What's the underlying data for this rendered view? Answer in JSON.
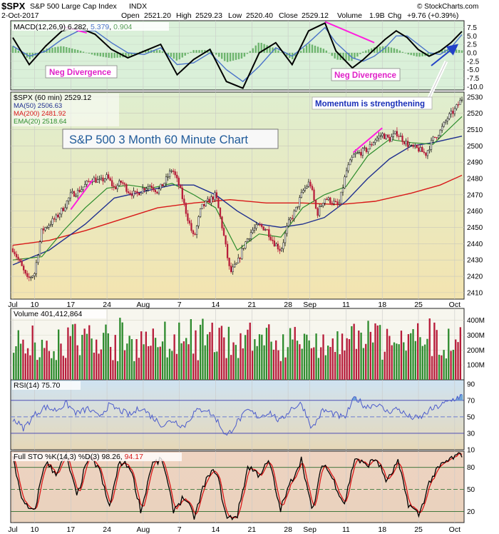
{
  "header": {
    "symbol": "$SPX",
    "name": "S&P 500 Large Cap Index",
    "exchange": "INDX",
    "date": "2-Oct-2017",
    "open_label": "Open",
    "open": "2521.20",
    "high_label": "High",
    "high": "2529.23",
    "low_label": "Low",
    "low": "2520.40",
    "close_label": "Close",
    "close": "2529.12",
    "volume_label": "Volume",
    "volume": "1.9B",
    "chg_label": "Chg",
    "chg": "+9.76 (+0.39%)",
    "watermark": "© StockCharts.com"
  },
  "colors": {
    "background": "#ffffff",
    "macd_panel": "#daf0d9",
    "price_top": "#dfeecf",
    "price_bottom": "#f3e4b0",
    "volume_panel": "#f7f6ee",
    "rsi_panel": "#d3e4ef",
    "sto_panel": "#eed3c1",
    "up": "#2e8b2e",
    "down": "#b71c3a",
    "ma50": "#1f2f8f",
    "ma200": "#d81818",
    "ema20": "#2c8c2c",
    "macd_line": "#000000",
    "signal_line": "#4a73c9",
    "magenta": "#ff1dde",
    "arrow_blue": "#2342c8",
    "rsi_line": "#4c5ccc"
  },
  "chart_data": [
    {
      "type": "line",
      "panel": "macd",
      "legend": {
        "label": "MACD(12,26,9)",
        "values": [
          "6.282",
          "5.379",
          "0.904"
        ],
        "value_colors": [
          "#000000",
          "#4a73c9",
          "#5aa05a"
        ]
      },
      "ylim": [
        -11,
        9.5
      ],
      "yticks": [
        "7.5",
        "5.0",
        "2.5",
        "0.0",
        "-2.5",
        "-5.0",
        "-7.5",
        "-10.0"
      ],
      "ytick_values": [
        7.5,
        5,
        2.5,
        0,
        -2.5,
        -5,
        -7.5,
        -10
      ],
      "x": [
        0,
        3,
        6,
        9,
        12,
        15,
        18,
        21,
        24,
        27,
        30,
        33,
        36,
        39,
        42,
        45,
        48,
        51,
        54,
        57,
        59,
        62
      ],
      "series": [
        {
          "values": [
            4.5,
            -3.5,
            2,
            6.5,
            7.5,
            5.5,
            1,
            -1.5,
            0.5,
            2.5,
            -6.5,
            -2,
            1,
            -8.5,
            -10.5,
            0,
            3,
            -3.5,
            6.5,
            8.8,
            0.5,
            -4.5
          ]
        },
        {
          "values": [
            2,
            -1,
            0.5,
            4,
            6.5,
            6.5,
            3,
            0,
            -0.5,
            1.5,
            -3.5,
            -3,
            0,
            -5,
            -8.5,
            -4,
            1.5,
            -1,
            3,
            7.5,
            3,
            -1.5
          ]
        }
      ],
      "x_tail": [
        62,
        64,
        66,
        68,
        70,
        72,
        74,
        76,
        78,
        80,
        82
      ],
      "series_tail": [
        {
          "values": [
            -4.5,
            -2,
            1,
            4,
            6.5,
            4.5,
            1,
            -1,
            0.5,
            3,
            6.3
          ]
        },
        {
          "values": [
            -1.5,
            -2.5,
            -1,
            1.5,
            5,
            5,
            2.5,
            0,
            -0.5,
            1.5,
            5.4
          ]
        }
      ],
      "x_max": 82,
      "annotations": [
        {
          "text": "Neg Divergence",
          "kind": "label"
        },
        {
          "text": "Neg Divergence",
          "kind": "label"
        }
      ]
    },
    {
      "type": "line",
      "panel": "price",
      "title": "S&P 500 3 Month 60 Minute Chart",
      "legend": [
        {
          "label": "$SPX (60 min)",
          "value": "2529.12"
        },
        {
          "label": "MA(50)",
          "value": "2506.63"
        },
        {
          "label": "MA(200)",
          "value": "2481.92"
        },
        {
          "label": "EMA(20)",
          "value": "2518.64"
        }
      ],
      "ylim": [
        2406,
        2533
      ],
      "yticks": [
        "2530",
        "2520",
        "2510",
        "2500",
        "2490",
        "2480",
        "2470",
        "2460",
        "2450",
        "2440",
        "2430",
        "2420",
        "2410"
      ],
      "ytick_values": [
        2530,
        2520,
        2510,
        2500,
        2490,
        2480,
        2470,
        2460,
        2450,
        2440,
        2430,
        2420,
        2410
      ],
      "categories": [
        "Jul",
        "10",
        "17",
        "24",
        "Aug",
        "7",
        "14",
        "21",
        "28",
        "Sep",
        "11",
        "18",
        "25",
        "Oct"
      ],
      "category_x": [
        0,
        6,
        16,
        26,
        36,
        46,
        56,
        66,
        76,
        82,
        92,
        102,
        112,
        122
      ],
      "x_max": 124,
      "close": {
        "x": [
          0,
          2,
          4,
          6,
          8,
          10,
          12,
          14,
          16,
          18,
          20,
          22,
          24,
          26,
          28,
          30,
          32,
          34,
          36,
          38,
          40,
          42,
          44,
          46,
          48,
          50,
          52,
          54,
          56,
          58,
          60,
          62,
          64,
          66,
          68,
          70,
          72,
          74,
          76,
          78,
          80,
          82,
          84,
          86,
          88,
          90,
          92,
          94,
          96,
          98,
          100,
          102,
          104,
          106,
          108,
          110,
          112,
          114,
          116,
          118,
          120,
          122,
          124
        ],
        "values": [
          2437,
          2428,
          2418,
          2422,
          2448,
          2452,
          2456,
          2462,
          2470,
          2472,
          2476,
          2480,
          2478,
          2481,
          2474,
          2478,
          2472,
          2470,
          2474,
          2476,
          2472,
          2478,
          2486,
          2475,
          2458,
          2443,
          2462,
          2466,
          2470,
          2448,
          2422,
          2428,
          2440,
          2448,
          2451,
          2449,
          2441,
          2436,
          2452,
          2460,
          2472,
          2478,
          2458,
          2468,
          2466,
          2463,
          2484,
          2494,
          2496,
          2498,
          2504,
          2507,
          2504,
          2508,
          2503,
          2499,
          2498,
          2495,
          2504,
          2509,
          2517,
          2522,
          2529
        ]
      },
      "ma50": {
        "x": [
          0,
          10,
          20,
          28,
          36,
          44,
          50,
          56,
          62,
          68,
          74,
          80,
          86,
          92,
          98,
          104,
          110,
          116,
          124
        ],
        "values": [
          2427,
          2436,
          2452,
          2468,
          2472,
          2476,
          2476,
          2470,
          2460,
          2452,
          2450,
          2452,
          2456,
          2466,
          2480,
          2492,
          2500,
          2502,
          2506
        ]
      },
      "ma200": {
        "x": [
          0,
          10,
          20,
          30,
          40,
          50,
          60,
          70,
          80,
          90,
          100,
          110,
          118,
          124
        ],
        "values": [
          2439,
          2442,
          2448,
          2455,
          2462,
          2465,
          2467,
          2465,
          2465,
          2464,
          2466,
          2471,
          2476,
          2482
        ]
      },
      "ema20": {
        "x": [
          0,
          8,
          14,
          20,
          26,
          32,
          38,
          44,
          50,
          56,
          62,
          68,
          74,
          80,
          86,
          92,
          98,
          104,
          110,
          116,
          124
        ],
        "values": [
          2430,
          2432,
          2448,
          2462,
          2474,
          2476,
          2474,
          2477,
          2470,
          2462,
          2436,
          2446,
          2444,
          2462,
          2470,
          2475,
          2494,
          2504,
          2502,
          2501,
          2518
        ]
      },
      "annotations": [
        {
          "text": "Momentum is strengthening",
          "kind": "callout"
        }
      ]
    },
    {
      "type": "bar",
      "panel": "volume",
      "legend": {
        "label": "Volume",
        "value": "401,412,864"
      },
      "ylim": [
        0,
        480
      ],
      "unit": "M",
      "yticks": [
        "400M",
        "300M",
        "200M",
        "100M"
      ],
      "ytick_values": [
        400,
        300,
        200,
        100
      ],
      "bar_count": 190,
      "values_note_free": true,
      "base_levels": [
        220,
        260,
        300,
        340,
        380,
        420
      ]
    },
    {
      "type": "line",
      "panel": "rsi",
      "legend": {
        "label": "RSI(14)",
        "value": "75.70"
      },
      "ylim": [
        10,
        95
      ],
      "yticks": [
        "90",
        "70",
        "50",
        "30",
        "10"
      ],
      "ytick_values": [
        90,
        70,
        50,
        30,
        10
      ],
      "reference_lines": [
        70,
        50,
        30
      ],
      "x": [
        0,
        3,
        6,
        9,
        12,
        15,
        18,
        21,
        24,
        27,
        30,
        33,
        36,
        39,
        42,
        45,
        48,
        51,
        54,
        57,
        60,
        63,
        66,
        69,
        72,
        75,
        78,
        81,
        84,
        87,
        90,
        93,
        96,
        99,
        102,
        105,
        108,
        111,
        114,
        117,
        120,
        123,
        126
      ],
      "values": [
        48,
        36,
        52,
        62,
        58,
        66,
        54,
        60,
        50,
        64,
        58,
        52,
        62,
        50,
        40,
        46,
        38,
        56,
        60,
        48,
        26,
        44,
        58,
        50,
        56,
        44,
        60,
        66,
        36,
        58,
        54,
        48,
        74,
        62,
        66,
        56,
        60,
        50,
        48,
        58,
        64,
        70,
        76
      ]
    },
    {
      "type": "line",
      "panel": "sto",
      "legend": {
        "label": "Full STO %K(14,3) %D(3)",
        "values": [
          "98.26",
          "94.17"
        ],
        "value_colors": [
          "#000000",
          "#d81818"
        ]
      },
      "ylim": [
        5,
        102
      ],
      "yticks": [
        "80",
        "50",
        "20"
      ],
      "ytick_values": [
        80,
        50,
        20
      ],
      "reference_lines": [
        80,
        50,
        20
      ],
      "x": [
        0,
        3,
        6,
        9,
        12,
        15,
        18,
        21,
        24,
        27,
        30,
        33,
        36,
        39,
        42,
        45,
        48,
        51,
        54,
        57,
        60,
        63,
        66,
        69,
        72,
        75,
        78,
        81,
        84,
        87,
        90,
        93,
        96,
        99,
        102,
        105,
        108,
        111,
        114,
        117,
        120,
        123,
        126
      ],
      "k": [
        92,
        30,
        18,
        88,
        72,
        95,
        40,
        92,
        82,
        25,
        88,
        80,
        20,
        85,
        90,
        22,
        40,
        12,
        62,
        78,
        10,
        15,
        82,
        70,
        88,
        22,
        60,
        92,
        18,
        88,
        62,
        30,
        94,
        82,
        92,
        60,
        88,
        30,
        15,
        62,
        82,
        92,
        98
      ],
      "d": [
        85,
        40,
        25,
        78,
        78,
        88,
        50,
        85,
        80,
        35,
        80,
        78,
        30,
        78,
        86,
        32,
        38,
        18,
        55,
        74,
        16,
        18,
        74,
        72,
        84,
        30,
        55,
        86,
        25,
        80,
        66,
        36,
        88,
        84,
        90,
        66,
        84,
        38,
        20,
        55,
        78,
        90,
        94
      ]
    }
  ],
  "x_axis": {
    "labels": [
      "Jul",
      "10",
      "17",
      "24",
      "Aug",
      "7",
      "14",
      "21",
      "28",
      "Sep",
      "11",
      "18",
      "25",
      "Oct"
    ]
  }
}
